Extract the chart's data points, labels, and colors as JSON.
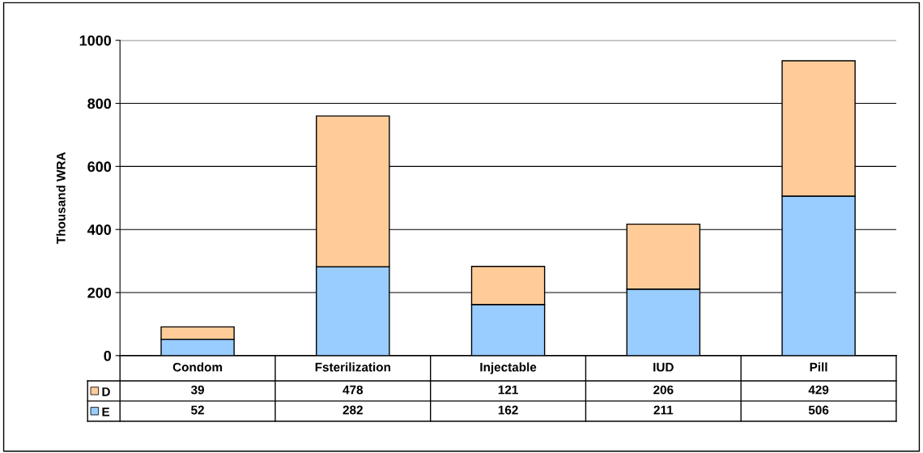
{
  "chart_data": {
    "type": "bar",
    "stacked": true,
    "ylabel": "Thousand WRA",
    "categories": [
      "Condom",
      "Fsterilization",
      "Injectable",
      "IUD",
      "Pill"
    ],
    "series": [
      {
        "name": "E",
        "color": "#99ccff",
        "values": [
          52,
          282,
          162,
          211,
          506
        ]
      },
      {
        "name": "D",
        "color": "#ffcc99",
        "values": [
          39,
          478,
          121,
          206,
          429
        ]
      }
    ],
    "ylim": [
      0,
      1000
    ],
    "yticks": [
      0,
      200,
      400,
      600,
      800,
      1000
    ],
    "grid": "y",
    "legend": "bottom",
    "data_labels": true
  }
}
